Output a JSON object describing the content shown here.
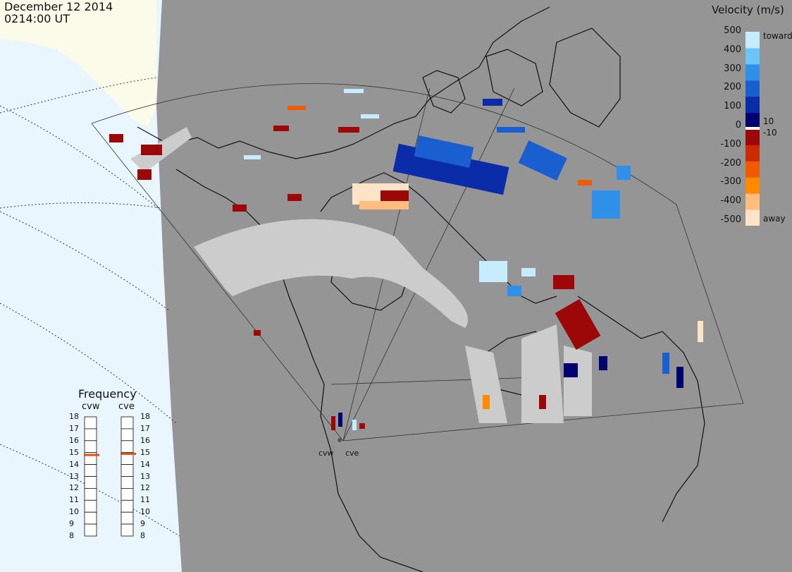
{
  "header": {
    "date": "December 12 2014",
    "time": "0214:00 UT"
  },
  "colorbar": {
    "title": "Velocity (m/s)",
    "ticks": [
      "500",
      "400",
      "300",
      "200",
      "100",
      "0",
      "-100",
      "-200",
      "-300",
      "-400",
      "-500"
    ],
    "side_labels": {
      "toward": "toward",
      "ten": "10",
      "minus_ten": "-10",
      "away": "away"
    },
    "colors": [
      "#fde3c7",
      "#ffbe80",
      "#ff8a00",
      "#f05a00",
      "#cc2a00",
      "#9c0808",
      "#000070",
      "#0a2ca8",
      "#1a5fd0",
      "#2f90ea",
      "#6cc5f7",
      "#c7ecff"
    ]
  },
  "frequency": {
    "title": "Frequency",
    "radars": [
      {
        "name": "cvw",
        "value": 14.8
      },
      {
        "name": "cve",
        "value": 14.9
      }
    ],
    "ticks": [
      "18",
      "17",
      "16",
      "15",
      "14",
      "13",
      "12",
      "11",
      "10",
      "9",
      "8"
    ]
  },
  "radar_labels": [
    "cvw",
    "cve"
  ],
  "colors": {
    "ocean": "#e9f6fd",
    "night": "#959595",
    "day_land": "#fbfbe9",
    "ground_scatter": "#cccccc",
    "marker": "#e05010"
  }
}
